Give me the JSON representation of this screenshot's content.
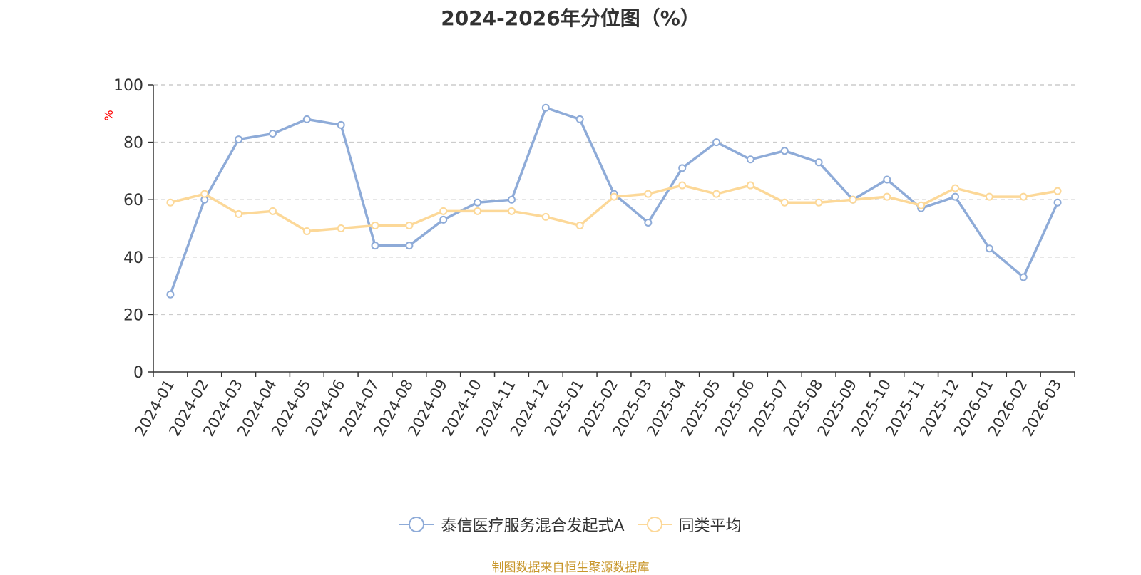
{
  "chart_data": {
    "type": "line",
    "title": "2024-2026年分位图（%）",
    "ylabel": "%",
    "xlabel": "",
    "ylim": [
      0,
      100
    ],
    "yticks": [
      0,
      20,
      40,
      60,
      80,
      100
    ],
    "grid": true,
    "legend_position": "bottom",
    "categories": [
      "2024-01",
      "2024-02",
      "2024-03",
      "2024-04",
      "2024-05",
      "2024-06",
      "2024-07",
      "2024-08",
      "2024-09",
      "2024-10",
      "2024-11",
      "2024-12",
      "2025-01",
      "2025-02",
      "2025-03",
      "2025-04",
      "2025-05",
      "2025-06",
      "2025-07",
      "2025-08",
      "2025-09",
      "2025-10",
      "2025-11",
      "2025-12",
      "2026-01",
      "2026-02",
      "2026-03"
    ],
    "series": [
      {
        "name": "泰信医疗服务混合发起式A",
        "color": "#8eabd8",
        "values": [
          27,
          60,
          81,
          83,
          88,
          86,
          44,
          44,
          53,
          59,
          60,
          92,
          88,
          62,
          52,
          71,
          80,
          74,
          77,
          73,
          60,
          67,
          57,
          61,
          43,
          33,
          59
        ]
      },
      {
        "name": "同类平均",
        "color": "#fcd898",
        "values": [
          59,
          62,
          55,
          56,
          49,
          50,
          51,
          51,
          56,
          56,
          56,
          54,
          51,
          61,
          62,
          65,
          62,
          65,
          59,
          59,
          60,
          61,
          58,
          64,
          61,
          61,
          63
        ]
      }
    ]
  },
  "source": "制图数据来自恒生聚源数据库",
  "colors": {
    "axis": "#333333",
    "grid": "#cccccc",
    "ylabel": "#ff0000",
    "source": "#c8962a"
  }
}
